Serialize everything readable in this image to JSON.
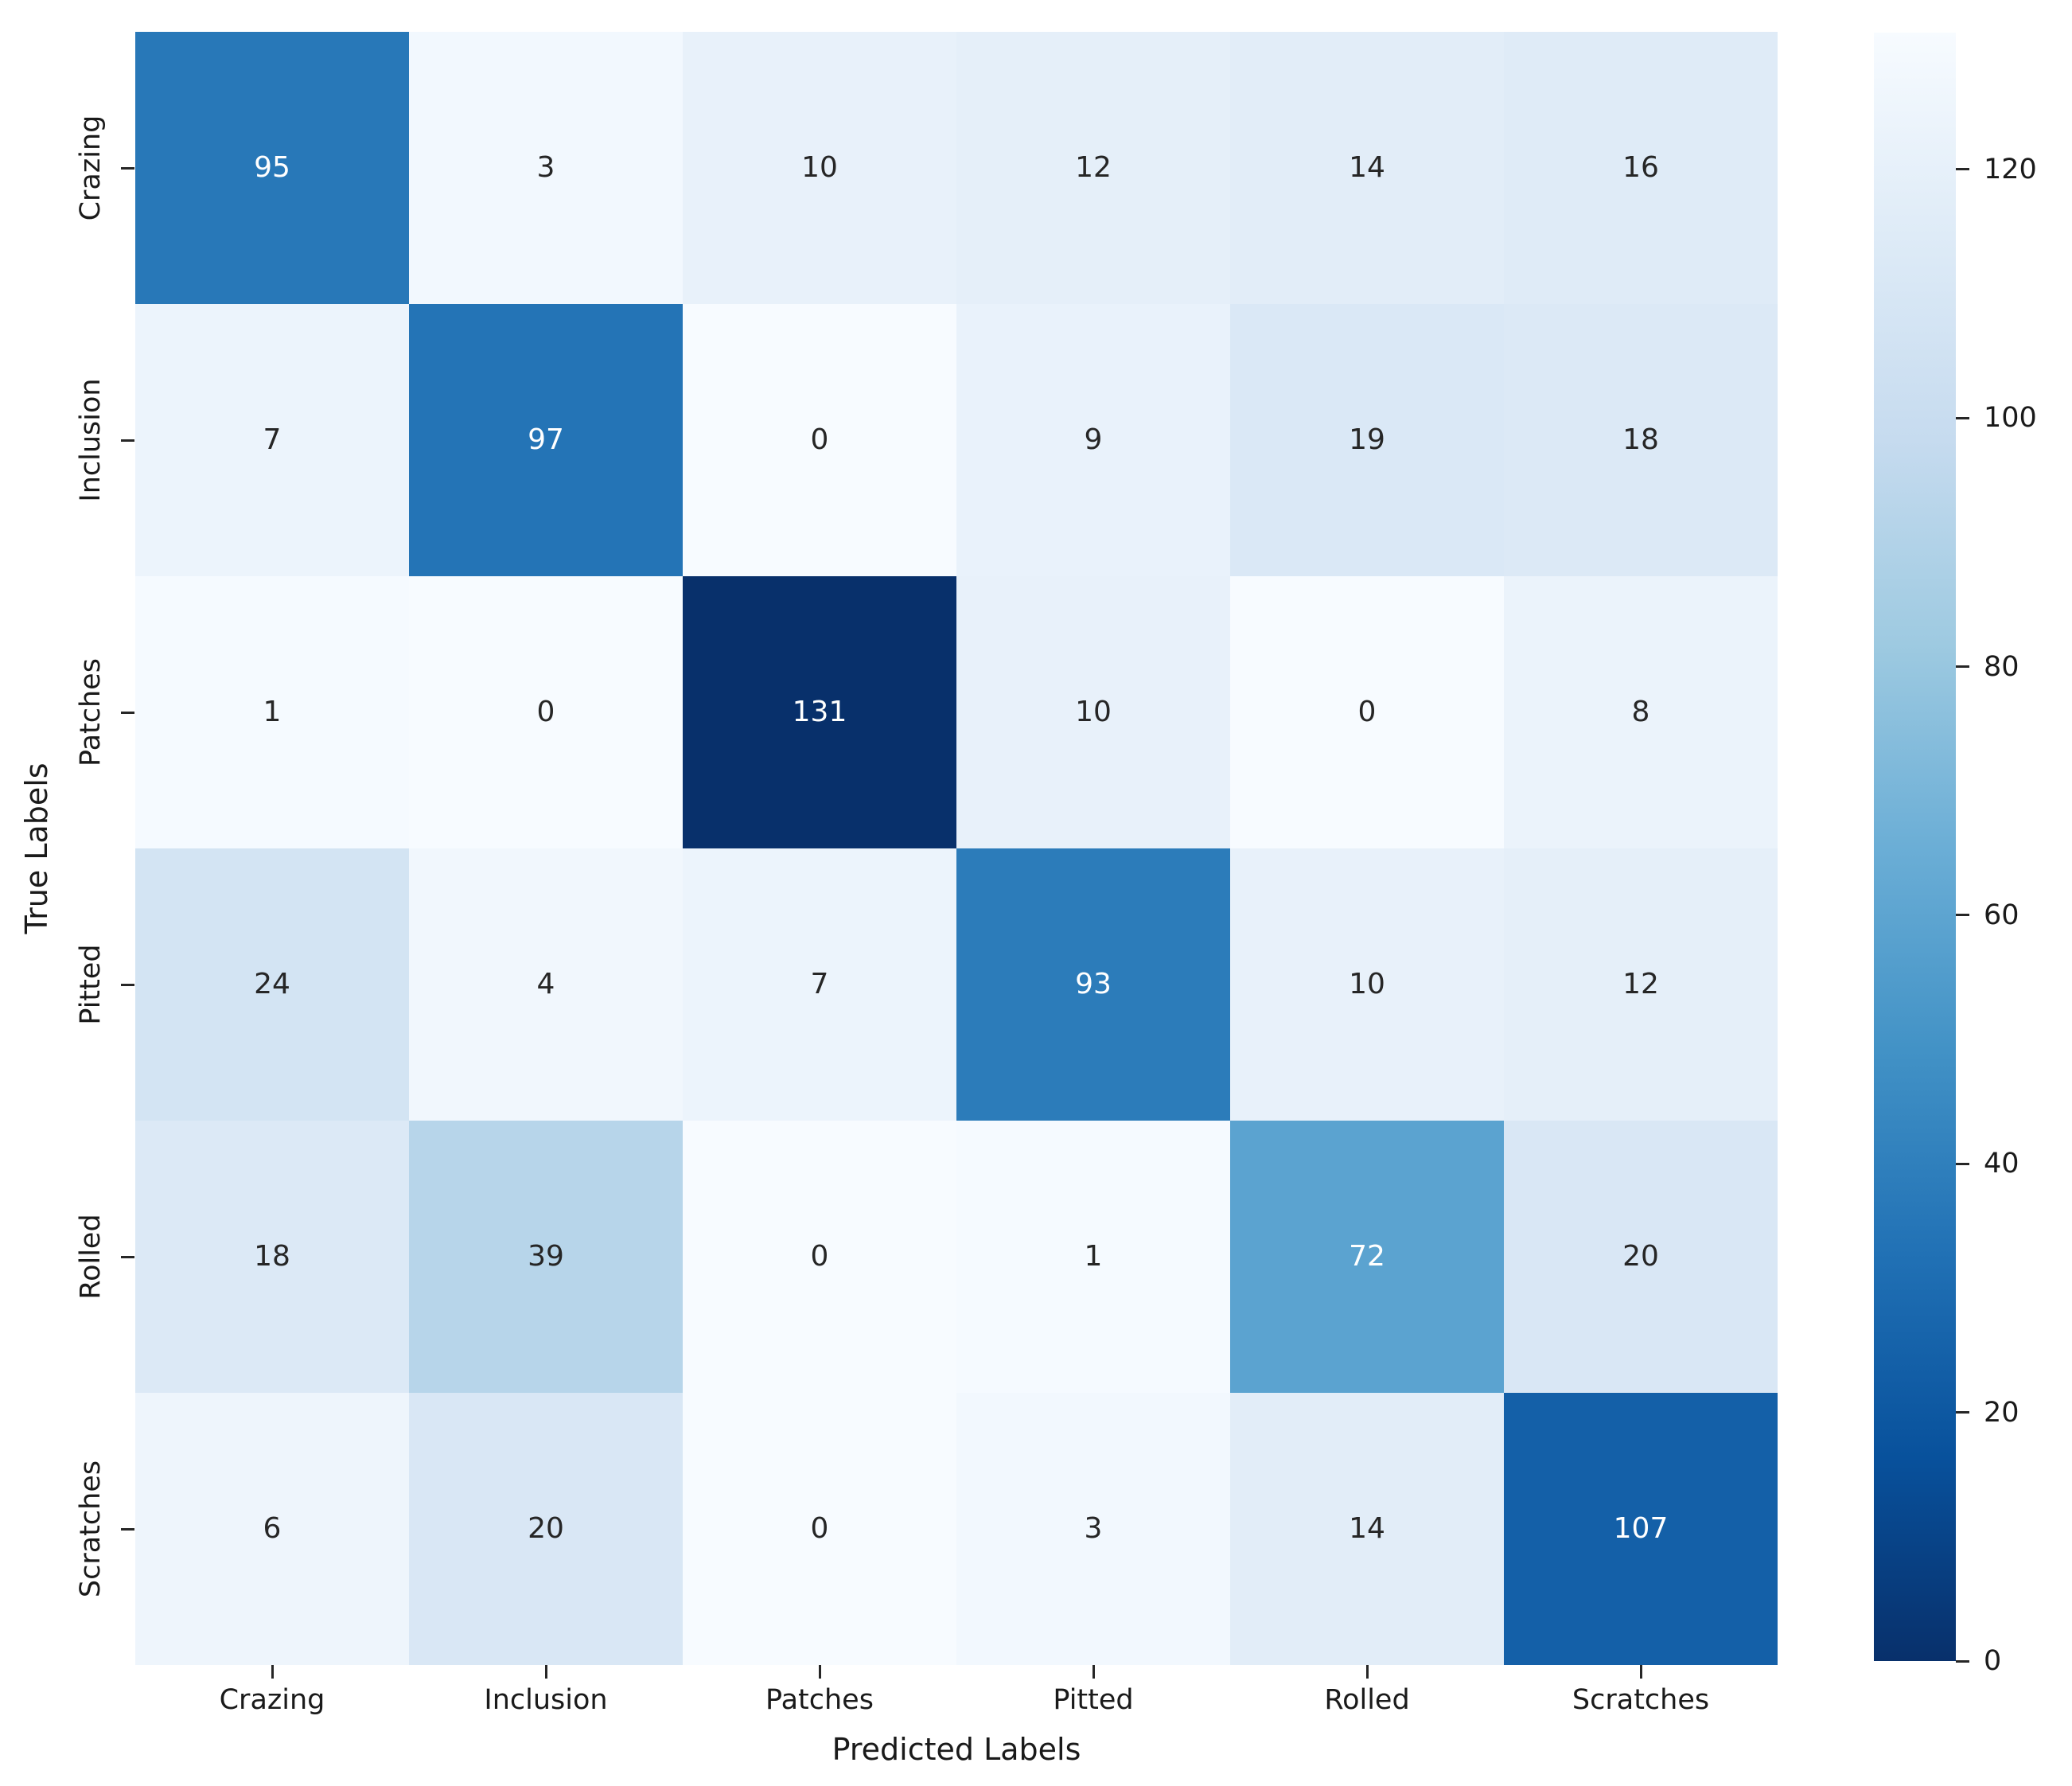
{
  "chart_data": {
    "type": "heatmap",
    "title": "",
    "xlabel": "Predicted Labels",
    "ylabel": "True Labels",
    "x_categories": [
      "Crazing",
      "Inclusion",
      "Patches",
      "Pitted",
      "Rolled",
      "Scratches"
    ],
    "y_categories": [
      "Crazing",
      "Inclusion",
      "Patches",
      "Pitted",
      "Rolled",
      "Scratches"
    ],
    "values": [
      [
        95,
        3,
        10,
        12,
        14,
        16
      ],
      [
        7,
        97,
        0,
        9,
        19,
        18
      ],
      [
        1,
        0,
        131,
        10,
        0,
        8
      ],
      [
        24,
        4,
        7,
        93,
        10,
        12
      ],
      [
        18,
        39,
        0,
        1,
        72,
        20
      ],
      [
        6,
        20,
        0,
        3,
        14,
        107
      ]
    ],
    "vmin": 0,
    "vmax": 131,
    "grid": false,
    "legend_position": "colorbar-right",
    "colorbar_ticks": [
      0,
      20,
      40,
      60,
      80,
      100,
      120
    ],
    "colormap": {
      "name": "Blues",
      "stops": [
        {
          "t": 0.0,
          "color": "#f7fbff"
        },
        {
          "t": 0.125,
          "color": "#deebf7"
        },
        {
          "t": 0.25,
          "color": "#c6dbef"
        },
        {
          "t": 0.375,
          "color": "#9ecae1"
        },
        {
          "t": 0.5,
          "color": "#6baed6"
        },
        {
          "t": 0.625,
          "color": "#4292c6"
        },
        {
          "t": 0.75,
          "color": "#2171b5"
        },
        {
          "t": 0.875,
          "color": "#08519c"
        },
        {
          "t": 1.0,
          "color": "#08306b"
        }
      ]
    },
    "annotation_colors": {
      "light": "#ffffff",
      "dark": "#262626"
    },
    "text_switch_threshold": 0.5,
    "axis_text_color": "#1a1a1a",
    "background_color": "#ffffff"
  }
}
